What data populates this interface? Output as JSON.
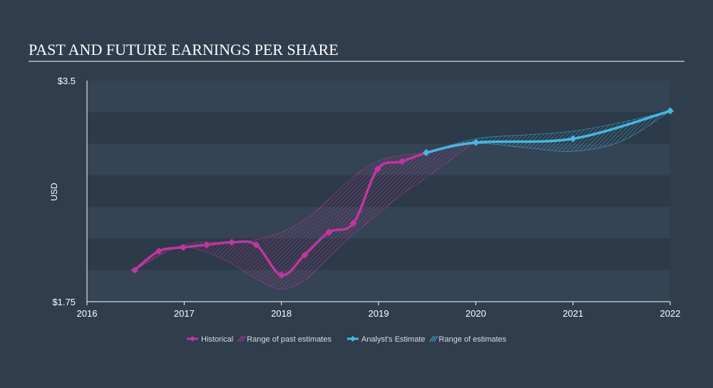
{
  "chart_data": {
    "type": "line",
    "title": "PAST AND FUTURE EARNINGS PER SHARE",
    "ylabel": "USD",
    "xlabel": "",
    "xlim": [
      2016.0,
      2022.0
    ],
    "ylim": [
      1.75,
      3.5
    ],
    "y_tick_labels": [
      {
        "value": 3.5,
        "label": "$3.5"
      },
      {
        "value": 1.75,
        "label": "$1.75"
      }
    ],
    "x_tick_labels": [
      {
        "value": 2016,
        "label": "2016"
      },
      {
        "value": 2017,
        "label": "2017"
      },
      {
        "value": 2018,
        "label": "2018"
      },
      {
        "value": 2019,
        "label": "2019"
      },
      {
        "value": 2020,
        "label": "2020"
      },
      {
        "value": 2021,
        "label": "2021"
      },
      {
        "value": 2022,
        "label": "2022"
      }
    ],
    "grid": true,
    "series": [
      {
        "name": "Historical",
        "color": "#c2359f",
        "points": [
          [
            2016.49,
            2.0
          ],
          [
            2016.74,
            2.15
          ],
          [
            2016.99,
            2.18
          ],
          [
            2017.23,
            2.2
          ],
          [
            2017.49,
            2.22
          ],
          [
            2017.74,
            2.2
          ],
          [
            2018.0,
            1.96
          ],
          [
            2018.24,
            2.12
          ],
          [
            2018.49,
            2.3
          ],
          [
            2018.74,
            2.37
          ],
          [
            2018.99,
            2.8
          ],
          [
            2019.24,
            2.86
          ],
          [
            2019.49,
            2.93
          ]
        ]
      },
      {
        "name": "Analyst's Estimate",
        "color": "#45b8e0",
        "points": [
          [
            2019.49,
            2.93
          ],
          [
            2020.0,
            3.01
          ],
          [
            2021.0,
            3.04
          ],
          [
            2022.0,
            3.26
          ]
        ]
      }
    ],
    "ranges": [
      {
        "name": "Range of past estimates",
        "color": "#c2359f",
        "upper": [
          [
            2016.49,
            2.0
          ],
          [
            2016.99,
            2.2
          ],
          [
            2017.49,
            2.22
          ],
          [
            2017.74,
            2.24
          ],
          [
            2018.0,
            2.3
          ],
          [
            2018.24,
            2.4
          ],
          [
            2018.49,
            2.56
          ],
          [
            2018.74,
            2.74
          ],
          [
            2018.99,
            2.86
          ],
          [
            2019.24,
            2.91
          ],
          [
            2019.49,
            2.93
          ],
          [
            2020.0,
            3.02
          ]
        ],
        "lower": [
          [
            2016.49,
            2.0
          ],
          [
            2016.74,
            2.12
          ],
          [
            2016.99,
            2.18
          ],
          [
            2017.23,
            2.14
          ],
          [
            2017.49,
            2.05
          ],
          [
            2017.74,
            1.93
          ],
          [
            2018.0,
            1.85
          ],
          [
            2018.24,
            1.92
          ],
          [
            2018.49,
            2.1
          ],
          [
            2018.74,
            2.28
          ],
          [
            2018.99,
            2.44
          ],
          [
            2019.24,
            2.6
          ],
          [
            2019.49,
            2.73
          ],
          [
            2020.0,
            3.02
          ]
        ]
      },
      {
        "name": "Range of estimates",
        "color": "#45b8e0",
        "upper": [
          [
            2019.49,
            2.93
          ],
          [
            2020.0,
            3.04
          ],
          [
            2020.5,
            3.07
          ],
          [
            2021.0,
            3.1
          ],
          [
            2021.5,
            3.17
          ],
          [
            2022.0,
            3.26
          ]
        ],
        "lower": [
          [
            2019.49,
            2.93
          ],
          [
            2020.0,
            3.0
          ],
          [
            2020.5,
            2.97
          ],
          [
            2021.0,
            2.94
          ],
          [
            2021.5,
            3.02
          ],
          [
            2022.0,
            3.26
          ]
        ]
      }
    ],
    "legend": {
      "placement": "bottom-center",
      "items": [
        {
          "label": "Historical",
          "kind": "line",
          "color": "#c2359f"
        },
        {
          "label": "Range of past estimates",
          "kind": "hatch",
          "color": "#c2359f"
        },
        {
          "label": "Analyst's Estimate",
          "kind": "line",
          "color": "#45b8e0"
        },
        {
          "label": "Range of estimates",
          "kind": "hatch",
          "color": "#45b8e0"
        }
      ]
    }
  }
}
